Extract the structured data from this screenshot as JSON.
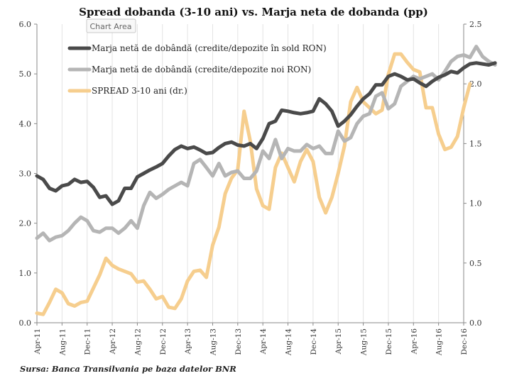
{
  "chart_data": {
    "type": "line",
    "title": "Spread dobanda (3-10 ani) vs. Marja neta de dobanda (pp)",
    "tooltip": "Chart Area",
    "source": "Sursa: Banca Transilvania pe baza datelor BNR",
    "x_ticks": [
      "Apr-11",
      "Aug-11",
      "Dec-11",
      "Apr-12",
      "Aug-12",
      "Dec-12",
      "Apr-13",
      "Aug-13",
      "Dec-13",
      "Apr-14",
      "Aug-14",
      "Dec-14",
      "Apr-15",
      "Aug-15",
      "Dec-15",
      "Apr-16",
      "Aug-16",
      "Dec-16"
    ],
    "x_range": [
      "Apr-11",
      "Dec-16"
    ],
    "y_left": {
      "min": 0,
      "max": 6,
      "ticks": [
        "0.0",
        "1.0",
        "2.0",
        "3.0",
        "4.0",
        "5.0",
        "6.0"
      ]
    },
    "y_right": {
      "min": 0,
      "max": 2.5,
      "ticks": [
        "0.0",
        "0.5",
        "1.0",
        "1.5",
        "2.0",
        "2.5"
      ]
    },
    "grid": "vertical",
    "legend_position": "top-left",
    "series": [
      {
        "name": "Marja netă de dobândă (credite/depozite în sold RON)",
        "axis": "left",
        "color": "#4a4a4a",
        "values": [
          2.95,
          2.88,
          2.7,
          2.65,
          2.75,
          2.78,
          2.88,
          2.82,
          2.84,
          2.72,
          2.52,
          2.55,
          2.38,
          2.45,
          2.7,
          2.7,
          2.93,
          3.0,
          3.07,
          3.13,
          3.2,
          3.35,
          3.48,
          3.55,
          3.5,
          3.53,
          3.47,
          3.4,
          3.42,
          3.52,
          3.6,
          3.63,
          3.57,
          3.55,
          3.6,
          3.5,
          3.7,
          4.0,
          4.05,
          4.27,
          4.25,
          4.22,
          4.2,
          4.22,
          4.25,
          4.5,
          4.4,
          4.25,
          3.95,
          4.05,
          4.18,
          4.35,
          4.5,
          4.6,
          4.78,
          4.78,
          4.95,
          5.0,
          4.95,
          4.88,
          4.9,
          4.82,
          4.75,
          4.85,
          4.93,
          4.98,
          5.05,
          5.02,
          5.12,
          5.2,
          5.22,
          5.2,
          5.18,
          5.22
        ]
      },
      {
        "name": "Marja netă de dobândă (credite/depozite noi RON)",
        "axis": "left",
        "color": "#b5b5b5",
        "values": [
          1.7,
          1.8,
          1.65,
          1.72,
          1.75,
          1.85,
          2.0,
          2.12,
          2.05,
          1.85,
          1.82,
          1.9,
          1.9,
          1.8,
          1.9,
          2.05,
          1.9,
          2.35,
          2.62,
          2.5,
          2.58,
          2.68,
          2.75,
          2.82,
          2.75,
          3.2,
          3.28,
          3.12,
          2.95,
          3.2,
          2.95,
          3.02,
          3.05,
          2.9,
          2.9,
          3.05,
          3.45,
          3.3,
          3.68,
          3.3,
          3.5,
          3.45,
          3.45,
          3.58,
          3.5,
          3.55,
          3.4,
          3.4,
          3.85,
          3.65,
          3.72,
          4.0,
          4.15,
          4.2,
          4.55,
          4.62,
          4.3,
          4.4,
          4.75,
          4.85,
          4.95,
          4.9,
          4.95,
          5.0,
          4.88,
          5.05,
          5.25,
          5.35,
          5.38,
          5.33,
          5.55,
          5.35,
          5.25,
          5.18
        ]
      },
      {
        "name": "SPREAD 3-10 ani (dr.)",
        "axis": "right",
        "color": "#f6ce8e",
        "values": [
          0.08,
          0.07,
          0.17,
          0.28,
          0.25,
          0.16,
          0.14,
          0.17,
          0.18,
          0.29,
          0.4,
          0.54,
          0.48,
          0.45,
          0.43,
          0.41,
          0.34,
          0.35,
          0.28,
          0.2,
          0.22,
          0.13,
          0.12,
          0.2,
          0.35,
          0.43,
          0.44,
          0.38,
          0.65,
          0.8,
          1.08,
          1.21,
          1.28,
          1.77,
          1.52,
          1.12,
          0.98,
          0.95,
          1.3,
          1.42,
          1.3,
          1.18,
          1.35,
          1.45,
          1.35,
          1.05,
          0.92,
          1.05,
          1.25,
          1.48,
          1.85,
          1.97,
          1.85,
          1.8,
          1.75,
          1.78,
          2.08,
          2.25,
          2.25,
          2.18,
          2.12,
          2.1,
          1.8,
          1.8,
          1.58,
          1.45,
          1.47,
          1.56,
          1.8,
          2.0
        ]
      }
    ]
  }
}
